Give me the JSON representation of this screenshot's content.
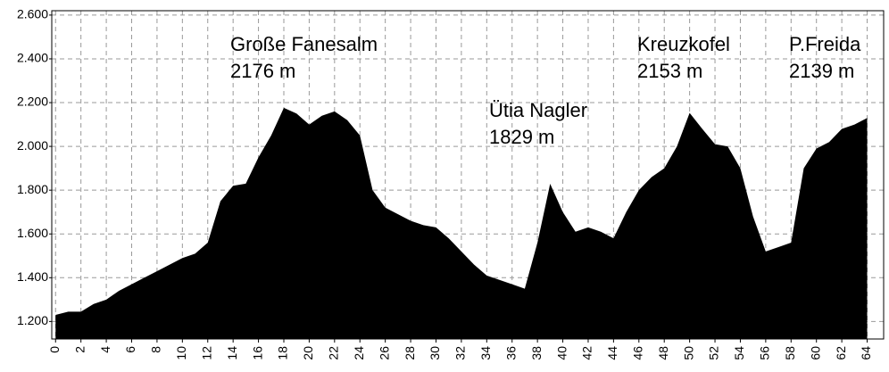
{
  "chart_data": {
    "type": "area",
    "x": [
      0,
      1,
      2,
      3,
      4,
      5,
      6,
      7,
      8,
      9,
      10,
      11,
      12,
      13,
      14,
      15,
      16,
      17,
      18,
      19,
      20,
      21,
      22,
      23,
      24,
      25,
      26,
      27,
      28,
      29,
      30,
      31,
      32,
      33,
      34,
      35,
      36,
      37,
      38,
      39,
      40,
      41,
      42,
      43,
      44,
      45,
      46,
      47,
      48,
      49,
      50,
      51,
      52,
      53,
      54,
      55,
      56,
      57,
      58,
      59,
      60,
      61,
      62,
      63,
      64
    ],
    "values": [
      1230,
      1245,
      1245,
      1280,
      1300,
      1340,
      1370,
      1400,
      1430,
      1460,
      1490,
      1510,
      1560,
      1750,
      1820,
      1830,
      1950,
      2050,
      2176,
      2150,
      2100,
      2140,
      2160,
      2120,
      2050,
      1800,
      1720,
      1690,
      1660,
      1640,
      1630,
      1580,
      1520,
      1460,
      1410,
      1390,
      1370,
      1350,
      1560,
      1829,
      1700,
      1610,
      1630,
      1610,
      1580,
      1700,
      1800,
      1860,
      1900,
      2000,
      2153,
      2080,
      2010,
      2000,
      1900,
      1680,
      1520,
      1540,
      1560,
      1900,
      1990,
      2020,
      2080,
      2100,
      2130
    ],
    "color": "#000000",
    "xlim": [
      -0.3,
      65.3
    ],
    "ylim": [
      1120,
      2620
    ],
    "xticks": [
      0,
      2,
      4,
      6,
      8,
      10,
      12,
      14,
      16,
      18,
      20,
      22,
      24,
      26,
      28,
      30,
      32,
      34,
      36,
      38,
      40,
      42,
      44,
      46,
      48,
      50,
      52,
      54,
      56,
      58,
      60,
      62,
      64
    ],
    "yticks": [
      {
        "value": 1200,
        "label": "1.200"
      },
      {
        "value": 1400,
        "label": "1.400"
      },
      {
        "value": 1600,
        "label": "1.600"
      },
      {
        "value": 1800,
        "label": "1.800"
      },
      {
        "value": 2000,
        "label": "2.000"
      },
      {
        "value": 2200,
        "label": "2.200"
      },
      {
        "value": 2400,
        "label": "2.400"
      },
      {
        "value": 2600,
        "label": "2.600"
      }
    ],
    "grid": true,
    "annotations": [
      {
        "text": "Große Fanesalm",
        "value": "2176 m"
      },
      {
        "text": "Ütia Nagler",
        "value": "1829 m"
      },
      {
        "text": "Kreuzkofel",
        "value": "2153 m"
      },
      {
        "text": "P.Freida",
        "value": "2139 m"
      }
    ]
  }
}
